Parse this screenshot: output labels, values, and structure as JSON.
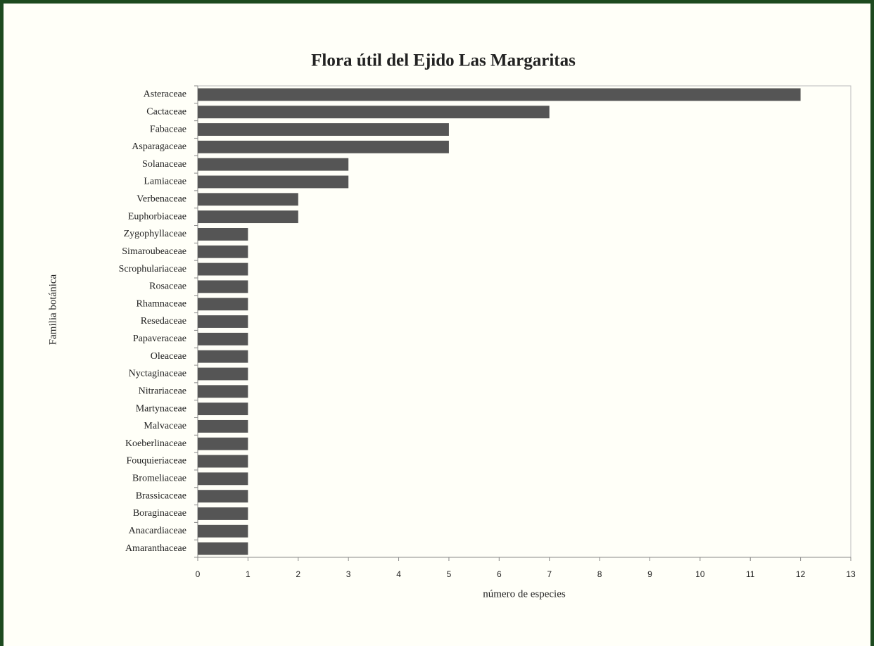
{
  "chart_data": {
    "type": "hbar",
    "title": "Flora útil del Ejido Las Margaritas",
    "x_label": "número de especies",
    "y_label": "Familia botánica",
    "categories": [
      "Asteraceae",
      "Cactaceae",
      "Fabaceae",
      "Asparagaceae",
      "Solanaceae",
      "Lamiaceae",
      "Verbenaceae",
      "Euphorbiaceae",
      "Zygophyllaceae",
      "Simaroubeaceae",
      "Scrophulariaceae",
      "Rosaceae",
      "Rhamnaceae",
      "Resedaceae",
      "Papaveraceae",
      "Oleaceae",
      "Nyctaginaceae",
      "Nitrariaceae",
      "Martynaceae",
      "Malvaceae",
      "Koeberlinaceae",
      "Fouquieriaceae",
      "Bromeliaceae",
      "Brassicaceae",
      "Boraginaceae",
      "Anacardiaceae",
      "Amaranthaceae"
    ],
    "values": [
      12,
      7,
      5,
      5,
      3,
      3,
      2,
      2,
      1,
      1,
      1,
      1,
      1,
      1,
      1,
      1,
      1,
      1,
      1,
      1,
      1,
      1,
      1,
      1,
      1,
      1,
      1
    ],
    "color": "#555555",
    "xlim": [
      0,
      13
    ],
    "xticks": [
      0,
      1,
      2,
      3,
      4,
      5,
      6,
      7,
      8,
      9,
      10,
      11,
      12,
      13
    ]
  }
}
